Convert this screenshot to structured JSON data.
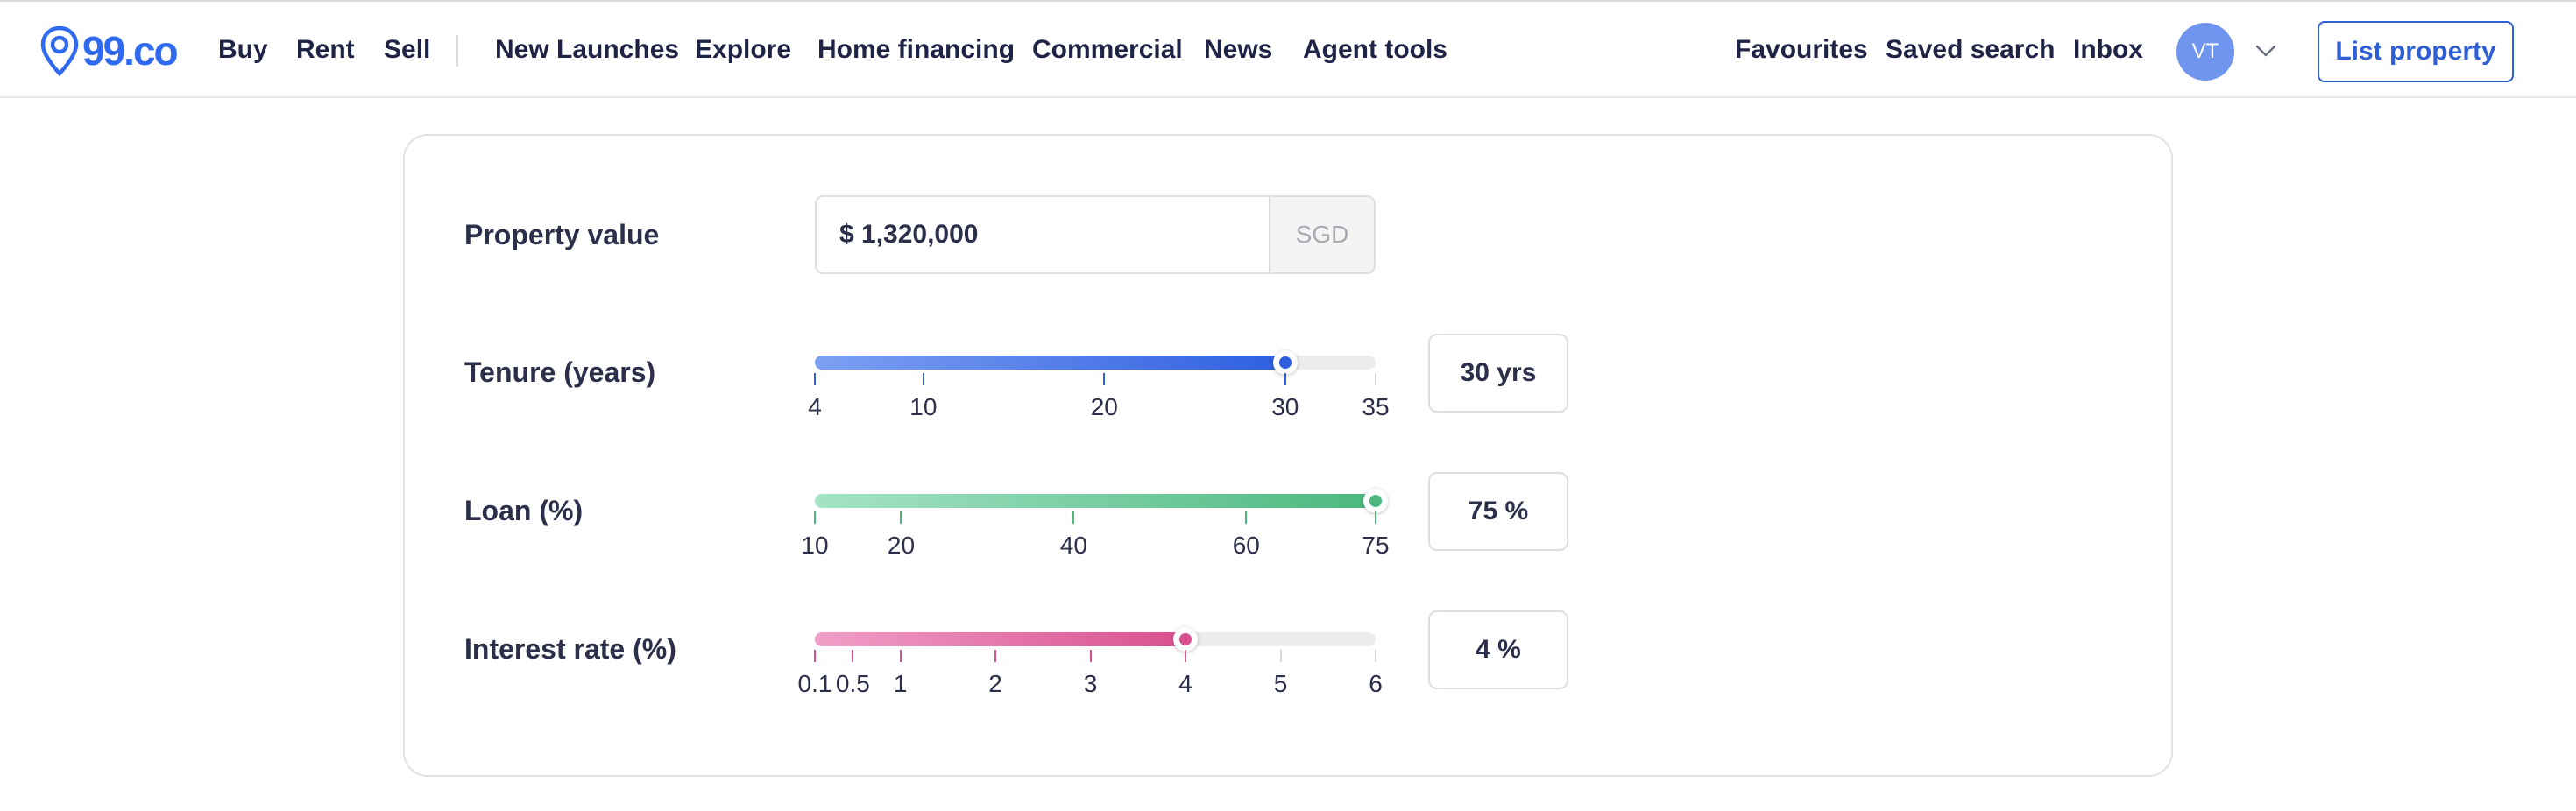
{
  "brand": {
    "logo_text": "99.co",
    "accent": "#2f6bf0"
  },
  "nav": {
    "left": [
      "Buy",
      "Rent",
      "Sell"
    ],
    "main": [
      "New Launches",
      "Explore",
      "Home financing",
      "Commercial",
      "News",
      "Agent tools"
    ],
    "right": [
      "Favourites",
      "Saved search",
      "Inbox"
    ],
    "avatar_initials": "VT",
    "menu_icon": "chevron-down-icon",
    "cta_label": "List property"
  },
  "calculator": {
    "property_value": {
      "label": "Property value",
      "value": "$ 1,320,000",
      "currency": "SGD"
    },
    "sliders": [
      {
        "id": "tenure",
        "label": "Tenure (years)",
        "min": 4,
        "max": 35,
        "value": 30,
        "ticks": [
          "4",
          "10",
          "20",
          "30",
          "35"
        ],
        "tick_values": [
          4,
          10,
          20,
          30,
          35
        ],
        "display": "30 yrs",
        "color_from": "#7da0f2",
        "color_to": "#2f5fe0",
        "thumb": "#2f5fe0",
        "tick_color": "#2f5fe0"
      },
      {
        "id": "loan",
        "label": "Loan (%)",
        "min": 10,
        "max": 75,
        "value": 75,
        "ticks": [
          "10",
          "20",
          "40",
          "60",
          "75"
        ],
        "tick_values": [
          10,
          20,
          40,
          60,
          75
        ],
        "display": "75 %",
        "color_from": "#a6e3c6",
        "color_to": "#4cb87e",
        "thumb": "#4cb87e",
        "tick_color": "#4cb87e"
      },
      {
        "id": "interest",
        "label": "Interest rate (%)",
        "min": 0.1,
        "max": 6,
        "value": 4,
        "ticks": [
          "0.1",
          "0.5",
          "1",
          "2",
          "3",
          "4",
          "5",
          "6"
        ],
        "tick_values": [
          0.1,
          0.5,
          1,
          2,
          3,
          4,
          5,
          6
        ],
        "display": "4 %",
        "color_from": "#f09fc7",
        "color_to": "#d9508f",
        "thumb": "#d9508f",
        "tick_color": "#d9508f"
      }
    ]
  }
}
